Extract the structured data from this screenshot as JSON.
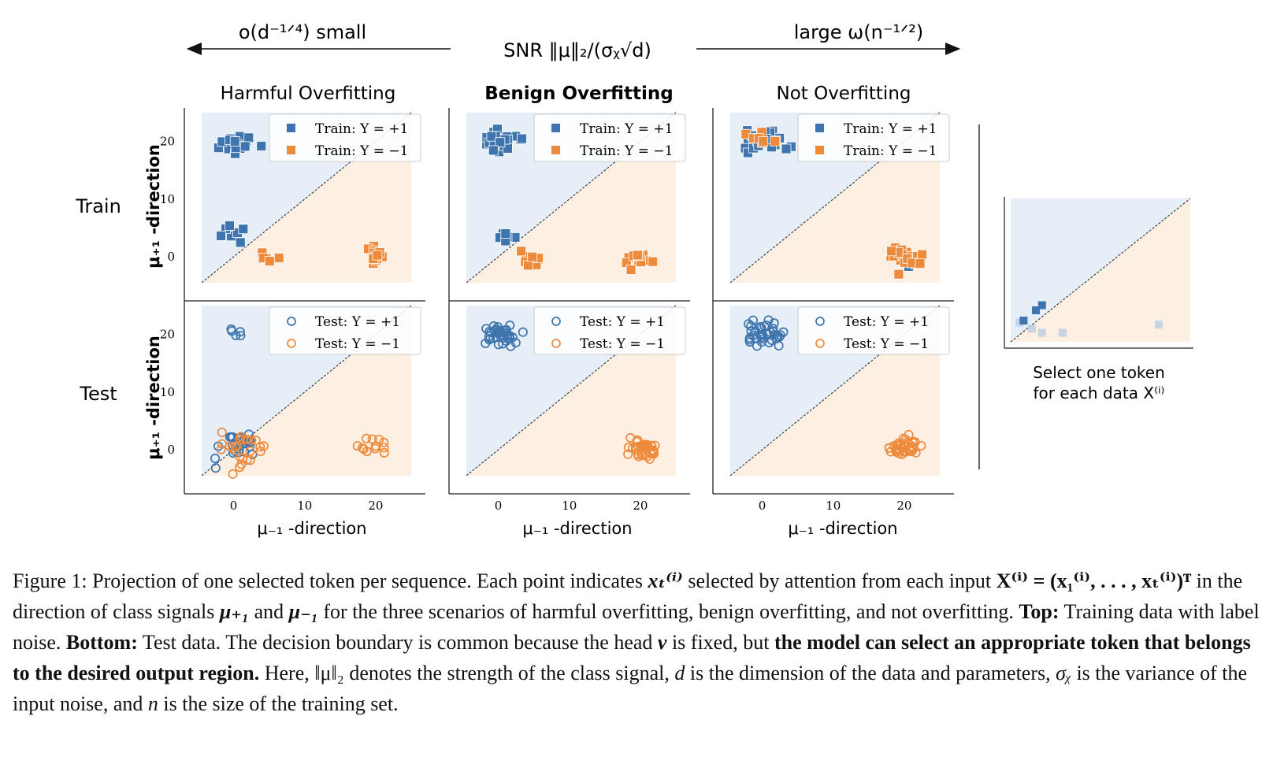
{
  "header": {
    "left_label": "o(d⁻¹ᐟ⁴)  small",
    "center_label": "SNR  ‖μ‖₂/(σᵪ√d)",
    "right_label": "large  ω(n⁻¹ᐟ²)"
  },
  "columns": [
    "Harmful Overfitting",
    "Benign Overfitting",
    "Not Overfitting"
  ],
  "rows": [
    "Train",
    "Test"
  ],
  "ylabel": "μ₊₁ -direction",
  "xlabel": "μ₋₁ -direction",
  "legend": {
    "train": [
      "Train:  Y = +1",
      "Train:  Y = −1"
    ],
    "test": [
      "Test:  Y = +1",
      "Test:  Y = −1"
    ]
  },
  "side_caption": [
    "Select one token",
    "for each data X⁽ⁱ⁾"
  ],
  "colors": {
    "blue": "#3f75ae",
    "orange": "#ee8a3c",
    "blue_region": "#e6eef7",
    "orange_region": "#fdf0e3"
  },
  "chart_data": [
    {
      "type": "scatter",
      "panel": "Harmful Overfitting / Train",
      "xlim": [
        -4.5,
        25
      ],
      "ylim": [
        -4.5,
        25
      ],
      "xticks": [
        0,
        10,
        20
      ],
      "yticks": [
        0,
        10,
        20
      ],
      "decision_boundary": "y = x",
      "series": [
        {
          "name": "Train:  Y = +1",
          "marker": "square",
          "clusters": [
            {
              "center": [
                0.5,
                19.8
              ],
              "spread": 1.2,
              "n": 22
            },
            {
              "center": [
                0.6,
                4.3
              ],
              "spread": 0.9,
              "n": 9
            }
          ]
        },
        {
          "name": "Train:  Y = −1",
          "marker": "square",
          "clusters": [
            {
              "center": [
                4.5,
                0.0
              ],
              "spread": 1.0,
              "n": 8
            },
            {
              "center": [
                20.0,
                0.0
              ],
              "spread": 1.1,
              "n": 14
            }
          ]
        }
      ]
    },
    {
      "type": "scatter",
      "panel": "Benign Overfitting / Train",
      "xlim": [
        -4.5,
        25
      ],
      "ylim": [
        -4.5,
        25
      ],
      "xticks": [
        0,
        10,
        20
      ],
      "yticks": [
        0,
        10,
        20
      ],
      "decision_boundary": "y = x",
      "series": [
        {
          "name": "Train:  Y = +1",
          "marker": "square",
          "clusters": [
            {
              "center": [
                0.3,
                20.0
              ],
              "spread": 1.2,
              "n": 22
            },
            {
              "center": [
                0.6,
                3.8
              ],
              "spread": 0.9,
              "n": 6
            }
          ]
        },
        {
          "name": "Train:  Y = −1",
          "marker": "square",
          "clusters": [
            {
              "center": [
                4.5,
                0.0
              ],
              "spread": 1.0,
              "n": 12
            },
            {
              "center": [
                20.0,
                0.2
              ],
              "spread": 1.1,
              "n": 14
            }
          ]
        }
      ]
    },
    {
      "type": "scatter",
      "panel": "Not Overfitting / Train",
      "xlim": [
        -4.5,
        25
      ],
      "ylim": [
        -4.5,
        25
      ],
      "xticks": [
        0,
        10,
        20
      ],
      "yticks": [
        0,
        10,
        20
      ],
      "decision_boundary": "y = x",
      "series": [
        {
          "name": "Train:  Y = +1",
          "marker": "square",
          "clusters": [
            {
              "center": [
                0.5,
                20.0
              ],
              "spread": 1.3,
              "n": 24
            },
            {
              "center": [
                20.0,
                0.0
              ],
              "spread": 1.0,
              "n": 3
            }
          ]
        },
        {
          "name": "Train:  Y = −1",
          "marker": "square",
          "clusters": [
            {
              "center": [
                0.3,
                20.0
              ],
              "spread": 1.2,
              "n": 8
            },
            {
              "center": [
                20.0,
                0.2
              ],
              "spread": 1.3,
              "n": 24
            }
          ]
        }
      ]
    },
    {
      "type": "scatter",
      "panel": "Harmful Overfitting / Test",
      "xlim": [
        -4.5,
        25
      ],
      "ylim": [
        -4.5,
        25
      ],
      "xticks": [
        0,
        10,
        20
      ],
      "yticks": [
        0,
        10,
        20
      ],
      "decision_boundary": "y = x",
      "series": [
        {
          "name": "Test:  Y = +1",
          "marker": "circle",
          "clusters": [
            {
              "center": [
                0.2,
                20.3
              ],
              "spread": 0.6,
              "n": 5
            },
            {
              "center": [
                0.5,
                0.5
              ],
              "spread": 1.6,
              "n": 26
            }
          ]
        },
        {
          "name": "Test:  Y = −1",
          "marker": "circle",
          "clusters": [
            {
              "center": [
                1.5,
                0.5
              ],
              "spread": 1.9,
              "n": 24
            },
            {
              "center": [
                19.8,
                0.3
              ],
              "spread": 1.0,
              "n": 12
            }
          ]
        }
      ]
    },
    {
      "type": "scatter",
      "panel": "Benign Overfitting / Test",
      "xlim": [
        -4.5,
        25
      ],
      "ylim": [
        -4.5,
        25
      ],
      "xticks": [
        0,
        10,
        20
      ],
      "yticks": [
        0,
        10,
        20
      ],
      "decision_boundary": "y = x",
      "series": [
        {
          "name": "Test:  Y = +1",
          "marker": "circle",
          "clusters": [
            {
              "center": [
                0.2,
                20.0
              ],
              "spread": 1.2,
              "n": 36
            }
          ]
        },
        {
          "name": "Test:  Y = −1",
          "marker": "circle",
          "clusters": [
            {
              "center": [
                20.0,
                0.0
              ],
              "spread": 1.2,
              "n": 36
            }
          ]
        }
      ]
    },
    {
      "type": "scatter",
      "panel": "Not Overfitting / Test",
      "xlim": [
        -4.5,
        25
      ],
      "ylim": [
        -4.5,
        25
      ],
      "xticks": [
        0,
        10,
        20
      ],
      "yticks": [
        0,
        10,
        20
      ],
      "decision_boundary": "y = x",
      "series": [
        {
          "name": "Test:  Y = +1",
          "marker": "circle",
          "clusters": [
            {
              "center": [
                0.2,
                20.0
              ],
              "spread": 1.3,
              "n": 36
            }
          ]
        },
        {
          "name": "Test:  Y = −1",
          "marker": "circle",
          "clusters": [
            {
              "center": [
                20.0,
                0.2
              ],
              "spread": 1.2,
              "n": 36
            }
          ]
        }
      ]
    }
  ],
  "side_plot": {
    "blue_points": [
      [
        0.0,
        0.2
      ],
      [
        -0.6,
        0.1
      ],
      [
        0.3,
        0.25
      ]
    ],
    "faded_points": [
      [
        -0.8,
        0.08
      ],
      [
        -0.2,
        0.02
      ],
      [
        0.3,
        -0.02
      ],
      [
        1.3,
        -0.02
      ],
      [
        6.0,
        0.06
      ]
    ]
  },
  "caption": {
    "fig_label": "Figure 1:",
    "sentence_1a": " Projection of one selected token per sequence. Each point indicates ",
    "sym_xt": "xₜ⁽ⁱ⁾",
    "sentence_1b": " selected by attention from each input ",
    "sym_X": "X⁽ⁱ⁾ = (x₁⁽ⁱ⁾, . . . , xₜ⁽ⁱ⁾)ᵀ",
    "sentence_1c": " in the direction of class signals ",
    "sym_mu_p": "μ₊₁",
    "and": " and ",
    "sym_mu_m": "μ₋₁",
    "sentence_1d": " for the three scenarios of harmful overfitting, benign overfitting, and not overfitting. ",
    "top_label": "Top:",
    "top_text": " Training data with label noise. ",
    "bottom_label": "Bottom:",
    "bottom_text": " Test data. The decision boundary is common because the head ",
    "sym_nu": "ν",
    "fixed_text": " is fixed, but ",
    "bold_text": "the model can select an appropriate token that belongs to the desired output region.",
    "here_text": " Here, ",
    "sym_norm": "‖μ‖₂",
    "norm_text": " denotes the strength of the class signal, ",
    "sym_d": "d",
    "d_text": " is the dimension of the data and parameters, ",
    "sym_sigma": "σᵪ",
    "sigma_text": " is the variance of the input noise, and ",
    "sym_n": "n",
    "n_text": " is the size of the training set."
  }
}
